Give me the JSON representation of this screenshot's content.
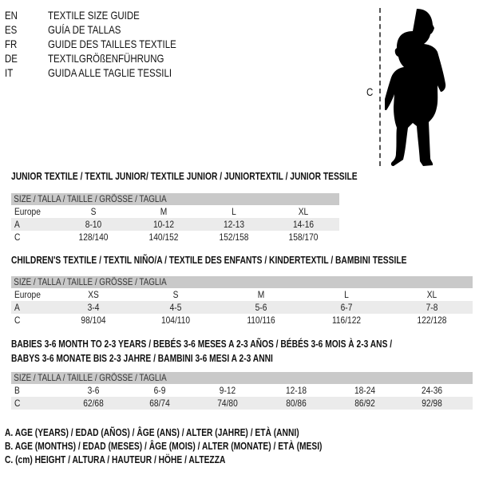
{
  "languages": [
    {
      "code": "EN",
      "text": "TEXTILE SIZE GUIDE"
    },
    {
      "code": "ES",
      "text": "GUÍA DE TALLAS"
    },
    {
      "code": "FR",
      "text": "GUIDE DES TAILLES TEXTILE"
    },
    {
      "code": "DE",
      "text": "TEXTILGRÖßENFÜHRUNG"
    },
    {
      "code": "IT",
      "text": "GUIDA ALLE TAGLIE TESSILI"
    }
  ],
  "figure": {
    "measure_label": "C",
    "icon": "child-silhouette"
  },
  "size_header": "SIZE / TALLA / TAILLE / GRÖSSE / TAGLIA",
  "tables": [
    {
      "title": "JUNIOR TEXTILE / TEXTIL JUNIOR/ TEXTILE JUNIOR / JUNIORTEXTIL / JUNIOR TESSILE",
      "rows": [
        {
          "label": "Europe",
          "values": [
            "S",
            "M",
            "L",
            "XL"
          ]
        },
        {
          "label": "A",
          "values": [
            "8-10",
            "10-12",
            "12-13",
            "14-16"
          ]
        },
        {
          "label": "C",
          "values": [
            "128/140",
            "140/152",
            "152/158",
            "158/170"
          ]
        }
      ]
    },
    {
      "title": "CHILDREN'S TEXTILE / TEXTIL NIÑO/A / TEXTILE DES ENFANTS / KINDERTEXTIL / BAMBINI TESSILE",
      "rows": [
        {
          "label": "Europe",
          "values": [
            "XS",
            "S",
            "M",
            "L",
            "XL"
          ]
        },
        {
          "label": "A",
          "values": [
            "3-4",
            "4-5",
            "5-6",
            "6-7",
            "7-8"
          ]
        },
        {
          "label": "C",
          "values": [
            "98/104",
            "104/110",
            "110/116",
            "116/122",
            "122/128"
          ]
        }
      ]
    },
    {
      "title": "BABIES 3-6 MONTH TO 2-3 YEARS / BEBÉS 3-6 MESES A 2-3 AÑOS / BÉBÉS 3-6 MOIS À 2-3 ANS /",
      "title2": "BABYS 3-6 MONATE BIS 2-3 JAHRE / BAMBINI 3-6 MESI A 2-3 ANNI",
      "rows": [
        {
          "label": "B",
          "values": [
            "3-6",
            "6-9",
            "9-12",
            "12-18",
            "18-24",
            "24-36"
          ]
        },
        {
          "label": "C",
          "values": [
            "62/68",
            "68/74",
            "74/80",
            "80/86",
            "86/92",
            "92/98"
          ]
        }
      ]
    }
  ],
  "footnotes": [
    "A. AGE (YEARS) / EDAD (AÑOS) / ÂGE (ANS) / ALTER (JAHRE) / ETÀ (ANNI)",
    "B. AGE (MONTHS) / EDAD (MESES) / ÂGE (MOIS) / ALTER (MONATE) / ETÀ (MESI)",
    "C. (cm) HEIGHT / ALTURA / HAUTEUR / HÖHE / ALTEZZA"
  ]
}
